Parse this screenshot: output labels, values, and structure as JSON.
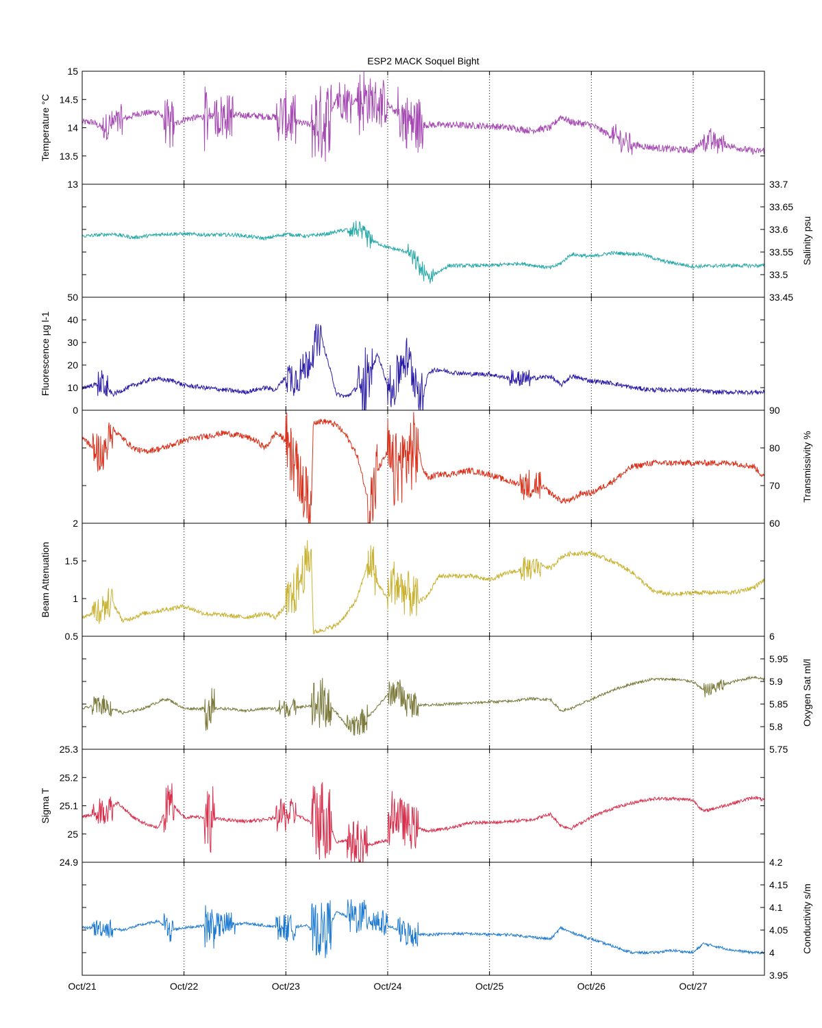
{
  "chart_data": {
    "type": "line",
    "title": "ESP2 MACK  Soquel Bight",
    "x_tick_labels": [
      "Oct/21",
      "Oct/22",
      "Oct/23",
      "Oct/24",
      "Oct/25",
      "Oct/26",
      "Oct/27"
    ],
    "xlim_days": [
      0,
      6.7
    ],
    "grid": "vertical dotted lines at each day",
    "panels": [
      {
        "ylabel": "Temperature °C",
        "axis_side": "left",
        "ylim": [
          13,
          15
        ],
        "yticks": [
          "13",
          "13.5",
          "14",
          "14.5",
          "15"
        ],
        "color": "#a64ab3",
        "noise": 0.06,
        "x": [
          0,
          0.1,
          0.2,
          0.4,
          0.55,
          0.75,
          0.85,
          1.0,
          1.2,
          1.4,
          1.6,
          1.8,
          2.0,
          2.1,
          2.25,
          2.4,
          2.5,
          2.6,
          2.75,
          2.9,
          3.0,
          3.1,
          3.2,
          3.3,
          3.4,
          3.6,
          3.8,
          4.0,
          4.2,
          4.4,
          4.6,
          4.7,
          4.8,
          5.0,
          5.1,
          5.2,
          5.4,
          5.6,
          5.8,
          6.0,
          6.1,
          6.2,
          6.4,
          6.6,
          6.7
        ],
        "values": [
          14.1,
          14.1,
          14.0,
          14.15,
          14.25,
          14.28,
          14.0,
          14.15,
          14.2,
          14.22,
          14.22,
          14.2,
          14.18,
          14.1,
          14.05,
          14.1,
          14.55,
          14.45,
          14.5,
          14.45,
          14.4,
          14.25,
          14.1,
          14.05,
          14.05,
          14.05,
          14.04,
          14.03,
          14.0,
          13.95,
          14.0,
          14.2,
          14.1,
          14.05,
          13.95,
          13.85,
          13.7,
          13.65,
          13.62,
          13.6,
          13.78,
          13.76,
          13.66,
          13.58,
          13.6
        ],
        "spikes": [
          [
            0.2,
            0.4,
            0.25
          ],
          [
            0.8,
            0.9,
            0.45
          ],
          [
            1.2,
            1.25,
            0.6
          ],
          [
            1.3,
            1.5,
            0.4
          ],
          [
            1.9,
            2.1,
            0.45
          ],
          [
            2.25,
            2.45,
            0.7
          ],
          [
            2.5,
            2.65,
            0.35
          ],
          [
            2.7,
            2.8,
            0.6
          ],
          [
            2.8,
            3.0,
            0.4
          ],
          [
            3.1,
            3.35,
            0.5
          ],
          [
            5.2,
            5.4,
            0.2
          ],
          [
            6.1,
            6.3,
            0.2
          ]
        ]
      },
      {
        "ylabel": "Salinity psu",
        "axis_side": "right",
        "ylim": [
          33.45,
          33.7
        ],
        "yticks": [
          "33.45",
          "33.5",
          "33.55",
          "33.6",
          "33.65",
          "33.7"
        ],
        "color": "#27a9a8",
        "noise": 0.004,
        "x": [
          0,
          0.3,
          0.5,
          0.8,
          1.0,
          1.2,
          1.5,
          1.8,
          2.0,
          2.2,
          2.4,
          2.6,
          2.7,
          2.8,
          3.0,
          3.2,
          3.4,
          3.45,
          3.6,
          3.8,
          4.0,
          4.3,
          4.6,
          4.7,
          4.8,
          5.0,
          5.2,
          5.5,
          5.7,
          6.0,
          6.3,
          6.5,
          6.7
        ],
        "values": [
          33.585,
          33.59,
          33.582,
          33.59,
          33.59,
          33.588,
          33.588,
          33.58,
          33.59,
          33.585,
          33.59,
          33.6,
          33.6,
          33.58,
          33.56,
          33.55,
          33.49,
          33.5,
          33.52,
          33.52,
          33.52,
          33.525,
          33.515,
          33.525,
          33.545,
          33.54,
          33.548,
          33.545,
          33.53,
          33.518,
          33.52,
          33.52,
          33.52
        ],
        "spikes": [
          [
            2.6,
            2.85,
            0.02
          ],
          [
            3.2,
            3.45,
            0.02
          ]
        ]
      },
      {
        "ylabel": "Fluorescence µg l-1",
        "axis_side": "left",
        "ylim": [
          0,
          50
        ],
        "yticks": [
          "0",
          "10",
          "20",
          "30",
          "40",
          "50"
        ],
        "color": "#2a1ca6",
        "noise": 1.0,
        "x": [
          0,
          0.2,
          0.3,
          0.5,
          0.7,
          0.9,
          1.0,
          1.2,
          1.4,
          1.6,
          1.8,
          1.9,
          2.0,
          2.1,
          2.2,
          2.25,
          2.3,
          2.35,
          2.5,
          2.6,
          2.7,
          2.8,
          2.9,
          3.0,
          3.05,
          3.15,
          3.2,
          3.3,
          3.35,
          3.4,
          3.5,
          3.6,
          3.8,
          4.0,
          4.2,
          4.4,
          4.6,
          4.7,
          4.8,
          5.0,
          5.2,
          5.4,
          5.6,
          5.8,
          6.0,
          6.2,
          6.4,
          6.7
        ],
        "values": [
          10,
          12,
          7,
          11,
          14,
          13,
          11,
          10,
          9,
          8,
          10,
          9,
          15,
          14,
          20,
          25,
          30,
          32,
          7,
          6,
          10,
          12,
          25,
          11,
          8,
          23,
          22,
          10,
          6,
          17,
          18,
          17,
          16,
          16,
          14,
          14,
          15,
          11,
          15,
          13,
          12,
          10,
          9,
          9,
          9,
          8,
          8,
          8
        ],
        "spikes": [
          [
            0.15,
            0.25,
            6
          ],
          [
            2.0,
            2.35,
            8
          ],
          [
            2.7,
            2.8,
            10
          ],
          [
            2.75,
            2.85,
            10
          ],
          [
            3.0,
            3.35,
            10
          ],
          [
            4.2,
            4.4,
            4
          ]
        ]
      },
      {
        "ylabel": "Transmissivity %",
        "axis_side": "right",
        "ylim": [
          60,
          90
        ],
        "yticks": [
          "60",
          "70",
          "80",
          "90"
        ],
        "color": "#d8321c",
        "noise": 0.8,
        "x": [
          0,
          0.1,
          0.2,
          0.3,
          0.5,
          0.6,
          0.8,
          1.0,
          1.2,
          1.4,
          1.6,
          1.7,
          1.8,
          1.9,
          2.0,
          2.1,
          2.15,
          2.25,
          2.27,
          2.4,
          2.5,
          2.6,
          2.7,
          2.8,
          2.85,
          2.9,
          3.0,
          3.05,
          3.2,
          3.3,
          3.35,
          3.4,
          3.5,
          3.6,
          3.8,
          4.0,
          4.2,
          4.4,
          4.5,
          4.6,
          4.7,
          4.8,
          4.9,
          5.0,
          5.2,
          5.4,
          5.6,
          5.8,
          6.0,
          6.2,
          6.4,
          6.6,
          6.7
        ],
        "values": [
          83,
          80,
          78,
          85,
          80,
          79,
          80,
          82,
          83,
          84,
          83,
          82,
          80,
          84,
          82,
          75,
          70,
          64,
          87,
          87,
          86,
          83,
          78,
          67,
          66,
          74,
          79,
          73,
          78,
          80,
          74,
          72,
          73,
          73,
          74,
          73,
          71,
          70,
          70,
          68,
          66,
          66,
          68,
          68,
          71,
          75,
          76,
          76,
          76,
          76,
          76,
          75,
          72
        ],
        "spikes": [
          [
            0.1,
            0.3,
            5
          ],
          [
            2.0,
            2.25,
            8
          ],
          [
            2.8,
            2.9,
            10
          ],
          [
            3.0,
            3.3,
            10
          ],
          [
            4.3,
            4.5,
            4
          ]
        ]
      },
      {
        "ylabel": "Beam Attenuation",
        "axis_side": "left",
        "ylim": [
          0.5,
          2
        ],
        "yticks": [
          "0.5",
          "1",
          "1.5",
          "2"
        ],
        "color": "#c8b232",
        "noise": 0.03,
        "x": [
          0,
          0.15,
          0.3,
          0.4,
          0.6,
          0.8,
          1.0,
          1.2,
          1.4,
          1.6,
          1.8,
          1.9,
          2.0,
          2.1,
          2.15,
          2.25,
          2.27,
          2.4,
          2.5,
          2.6,
          2.7,
          2.8,
          2.85,
          2.9,
          3.0,
          3.05,
          3.2,
          3.3,
          3.35,
          3.4,
          3.5,
          3.6,
          3.8,
          4.0,
          4.2,
          4.4,
          4.5,
          4.6,
          4.7,
          4.8,
          4.9,
          5.0,
          5.2,
          5.4,
          5.6,
          5.8,
          6.0,
          6.2,
          6.4,
          6.6,
          6.7
        ],
        "values": [
          0.75,
          0.85,
          0.95,
          0.7,
          0.8,
          0.85,
          0.9,
          0.8,
          0.78,
          0.75,
          0.8,
          0.75,
          0.9,
          1.1,
          1.3,
          1.6,
          0.55,
          0.6,
          0.65,
          0.8,
          1.0,
          1.45,
          1.5,
          1.2,
          1.0,
          1.25,
          1.05,
          0.95,
          1.0,
          1.05,
          1.3,
          1.3,
          1.3,
          1.25,
          1.35,
          1.4,
          1.45,
          1.4,
          1.55,
          1.6,
          1.6,
          1.6,
          1.5,
          1.35,
          1.1,
          1.05,
          1.08,
          1.08,
          1.08,
          1.15,
          1.25
        ],
        "spikes": [
          [
            0.1,
            0.3,
            0.2
          ],
          [
            2.0,
            2.25,
            0.3
          ],
          [
            2.8,
            2.9,
            0.3
          ],
          [
            3.0,
            3.3,
            0.3
          ],
          [
            4.3,
            4.5,
            0.15
          ]
        ]
      },
      {
        "ylabel": "Oxygen Sat ml/l",
        "axis_side": "right",
        "ylim": [
          5.75,
          6
        ],
        "yticks": [
          "5.75",
          "5.8",
          "5.85",
          "5.9",
          "5.95",
          "6"
        ],
        "color": "#7b7a3c",
        "noise": 0.003,
        "x": [
          0,
          0.2,
          0.4,
          0.6,
          0.8,
          0.85,
          1.0,
          1.2,
          1.4,
          1.6,
          1.8,
          2.0,
          2.2,
          2.4,
          2.5,
          2.6,
          2.75,
          2.8,
          3.0,
          3.1,
          3.2,
          3.4,
          3.6,
          3.8,
          4.0,
          4.2,
          4.4,
          4.6,
          4.7,
          4.8,
          5.0,
          5.2,
          5.4,
          5.6,
          5.8,
          6.0,
          6.1,
          6.2,
          6.4,
          6.6,
          6.7
        ],
        "values": [
          5.84,
          5.85,
          5.83,
          5.84,
          5.86,
          5.86,
          5.84,
          5.84,
          5.84,
          5.835,
          5.84,
          5.84,
          5.845,
          5.85,
          5.83,
          5.8,
          5.81,
          5.82,
          5.87,
          5.88,
          5.85,
          5.848,
          5.85,
          5.852,
          5.855,
          5.856,
          5.862,
          5.86,
          5.835,
          5.84,
          5.86,
          5.88,
          5.895,
          5.905,
          5.905,
          5.9,
          5.88,
          5.885,
          5.9,
          5.91,
          5.905
        ],
        "spikes": [
          [
            0.1,
            0.3,
            0.02
          ],
          [
            1.2,
            1.3,
            0.05
          ],
          [
            1.9,
            2.1,
            0.02
          ],
          [
            2.25,
            2.45,
            0.06
          ],
          [
            2.6,
            2.8,
            0.03
          ],
          [
            3.0,
            3.3,
            0.03
          ],
          [
            6.1,
            6.3,
            0.015
          ]
        ]
      },
      {
        "ylabel": "Sigma T",
        "axis_side": "left",
        "ylim": [
          24.9,
          25.3
        ],
        "yticks": [
          "24.9",
          "25",
          "25.1",
          "25.2",
          "25.3"
        ],
        "color": "#d8304c",
        "noise": 0.006,
        "x": [
          0,
          0.2,
          0.35,
          0.5,
          0.6,
          0.75,
          0.85,
          1.0,
          1.2,
          1.4,
          1.6,
          1.8,
          2.0,
          2.1,
          2.25,
          2.4,
          2.5,
          2.6,
          2.75,
          2.8,
          3.0,
          3.05,
          3.2,
          3.4,
          3.6,
          3.8,
          4.0,
          4.2,
          4.4,
          4.6,
          4.7,
          4.8,
          5.0,
          5.2,
          5.4,
          5.6,
          5.8,
          6.0,
          6.1,
          6.2,
          6.4,
          6.6,
          6.7
        ],
        "values": [
          25.06,
          25.08,
          25.11,
          25.06,
          25.04,
          25.02,
          25.12,
          25.06,
          25.06,
          25.05,
          25.045,
          25.05,
          25.07,
          25.07,
          25.04,
          25.06,
          24.97,
          24.98,
          24.96,
          24.96,
          24.98,
          25.08,
          25.03,
          25.01,
          25.02,
          25.04,
          25.04,
          25.045,
          25.05,
          25.07,
          25.03,
          25.02,
          25.06,
          25.09,
          25.11,
          25.125,
          25.125,
          25.12,
          25.08,
          25.09,
          25.11,
          25.13,
          25.12
        ],
        "spikes": [
          [
            0.1,
            0.3,
            0.05
          ],
          [
            0.8,
            0.9,
            0.08
          ],
          [
            1.2,
            1.3,
            0.12
          ],
          [
            1.9,
            2.1,
            0.06
          ],
          [
            2.25,
            2.45,
            0.15
          ],
          [
            2.6,
            2.8,
            0.08
          ],
          [
            3.0,
            3.3,
            0.08
          ]
        ]
      },
      {
        "ylabel": "Conductivity s/m",
        "axis_side": "right",
        "ylim": [
          3.95,
          4.2
        ],
        "yticks": [
          "3.95",
          "4",
          "4.05",
          "4.1",
          "4.15",
          "4.2"
        ],
        "color": "#1e7ad0",
        "noise": 0.003,
        "x": [
          0,
          0.2,
          0.4,
          0.55,
          0.75,
          0.85,
          1.0,
          1.2,
          1.4,
          1.6,
          1.8,
          2.0,
          2.2,
          2.25,
          2.4,
          2.5,
          2.6,
          2.8,
          2.9,
          3.0,
          3.1,
          3.2,
          3.4,
          3.6,
          3.8,
          4.0,
          4.2,
          4.4,
          4.6,
          4.7,
          4.8,
          5.0,
          5.2,
          5.4,
          5.6,
          5.8,
          6.0,
          6.1,
          6.2,
          6.4,
          6.6,
          6.7
        ],
        "values": [
          4.055,
          4.055,
          4.05,
          4.06,
          4.07,
          4.05,
          4.055,
          4.06,
          4.06,
          4.065,
          4.06,
          4.055,
          4.06,
          4.05,
          4.05,
          4.09,
          4.08,
          4.08,
          4.07,
          4.06,
          4.05,
          4.04,
          4.04,
          4.042,
          4.042,
          4.04,
          4.04,
          4.035,
          4.03,
          4.055,
          4.045,
          4.03,
          4.015,
          4.0,
          4.0,
          4.005,
          4.0,
          4.02,
          4.015,
          4.005,
          4.0,
          4.0
        ],
        "spikes": [
          [
            0.1,
            0.3,
            0.02
          ],
          [
            0.8,
            0.9,
            0.03
          ],
          [
            1.2,
            1.3,
            0.05
          ],
          [
            1.3,
            1.5,
            0.03
          ],
          [
            1.9,
            2.1,
            0.03
          ],
          [
            2.25,
            2.45,
            0.06
          ],
          [
            2.6,
            2.8,
            0.04
          ],
          [
            2.8,
            3.0,
            0.03
          ],
          [
            3.1,
            3.3,
            0.03
          ]
        ]
      }
    ]
  }
}
